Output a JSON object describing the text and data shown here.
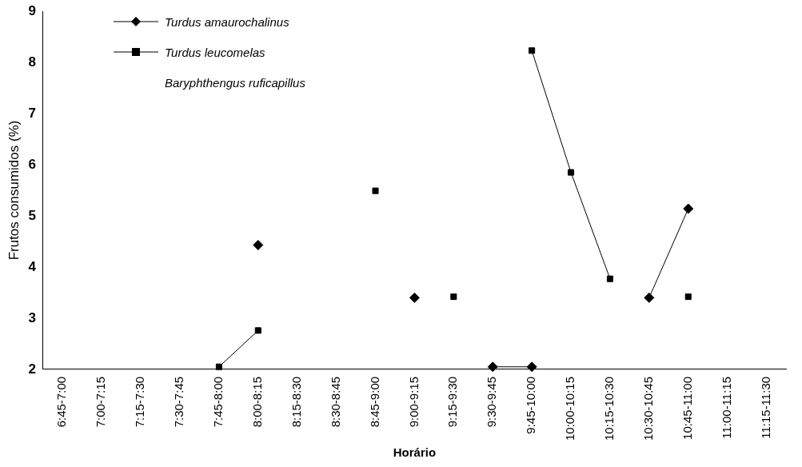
{
  "chart_data": {
    "type": "line",
    "xlabel": "Horário",
    "ylabel": "Frutos consumidos (%)",
    "categories": [
      "6:45-7:00",
      "7:00-7:15",
      "7:15-7:30",
      "7:30-7:45",
      "7:45-8:00",
      "8:00-8:15",
      "8:15-8:30",
      "8:30-8:45",
      "8:45-9:00",
      "9:00-9:15",
      "9:15-9:30",
      "9:30-9:45",
      "9:45-10:00",
      "10:00-10:15",
      "10:15-10:30",
      "10:30-10:45",
      "10:45-11:00",
      "11:00-11:15",
      "11:15-11:30"
    ],
    "series": [
      {
        "name": "Turdus amaurochalinus",
        "color": "#000000",
        "marker": "diamond",
        "values": [
          null,
          null,
          null,
          null,
          null,
          4.43,
          null,
          null,
          null,
          3.4,
          null,
          2.05,
          2.05,
          null,
          null,
          3.4,
          5.14,
          null,
          null
        ]
      },
      {
        "name": "Turdus leucomelas",
        "color": "#000000",
        "marker": "square",
        "values": [
          null,
          null,
          null,
          null,
          2.05,
          2.76,
          null,
          null,
          5.49,
          null,
          3.42,
          null,
          8.23,
          5.85,
          3.77,
          null,
          3.42,
          null,
          null
        ]
      },
      {
        "name": "Baryphthengus ruficapillus",
        "marker": "none",
        "values": [
          null,
          null,
          null,
          null,
          null,
          null,
          null,
          null,
          null,
          null,
          null,
          null,
          null,
          null,
          null,
          null,
          null,
          null,
          null
        ]
      }
    ],
    "ylim": [
      2,
      9
    ],
    "yticks": [
      2,
      3,
      4,
      5,
      6,
      7,
      8,
      9
    ],
    "grid": false,
    "legend": "top left"
  }
}
